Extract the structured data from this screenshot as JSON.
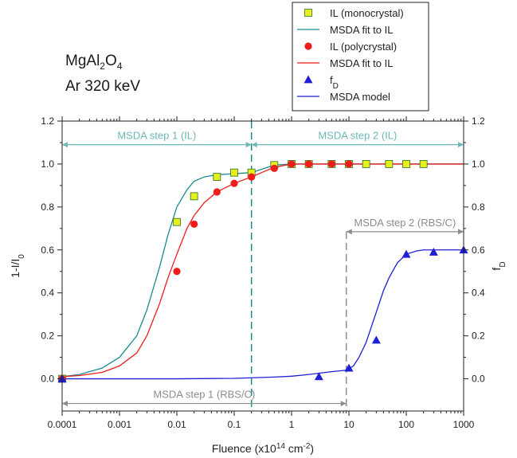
{
  "annotation": {
    "material_parts": [
      "MgAl",
      "2",
      "O",
      "4"
    ],
    "beam": "Ar 320 keV"
  },
  "colors": {
    "mono_marker": "#e6ee1e",
    "mono_fit": "#1a8c8c",
    "poly": "#ee1c1c",
    "model": "#1e1ed6",
    "ann_teal": "#6cb8b8",
    "ann_gray": "#8c8c8c"
  },
  "chart_data": {
    "type": "scatter",
    "x_scale": "log",
    "xlim": [
      0.0001,
      1000
    ],
    "ylim": [
      -0.15,
      1.2
    ],
    "y2lim": [
      -0.15,
      1.2
    ],
    "xlabel_parts": [
      "Fluence (x10",
      "14",
      " cm",
      "-2",
      ")"
    ],
    "ylabel_parts": [
      "1-I/I",
      "0"
    ],
    "y2label_parts": [
      "f",
      "D"
    ],
    "xticks": [
      0.0001,
      0.001,
      0.01,
      0.1,
      1,
      10,
      100,
      1000
    ],
    "xtick_labels": [
      "0.0001",
      "0.001",
      "0.01",
      "0.1",
      "1",
      "10",
      "100",
      "1000"
    ],
    "yticks": [
      0.0,
      0.2,
      0.4,
      0.6,
      0.8,
      1.0,
      1.2
    ],
    "ytick_labels": [
      "0.0",
      "0.2",
      "0.4",
      "0.6",
      "0.8",
      "1.0",
      "1.2"
    ],
    "legend": {
      "placement": "top-right",
      "entries": [
        {
          "label_parts": [
            "IL (monocrystal)"
          ],
          "symbol": "square"
        },
        {
          "label_parts": [
            "MSDA fit to IL"
          ],
          "symbol": "line-teal"
        },
        {
          "label_parts": [
            "IL (polycrystal)"
          ],
          "symbol": "circle"
        },
        {
          "label_parts": [
            "MSDA fit to IL"
          ],
          "symbol": "line-red"
        },
        {
          "label_parts": [
            "f",
            "D"
          ],
          "symbol": "triangle"
        },
        {
          "label_parts": [
            "MSDA model"
          ],
          "symbol": "line-blue"
        }
      ]
    },
    "series": [
      {
        "name": "IL (monocrystal)",
        "kind": "markers",
        "marker": "square",
        "x": [
          0.0001,
          0.01,
          0.02,
          0.05,
          0.1,
          0.2,
          0.5,
          1,
          2,
          5,
          10,
          20,
          50,
          100,
          200
        ],
        "y": [
          0.0,
          0.73,
          0.85,
          0.94,
          0.96,
          0.96,
          0.995,
          1.0,
          1.0,
          1.0,
          1.0,
          1.0,
          1.0,
          1.0,
          1.0
        ]
      },
      {
        "name": "MSDA fit to IL (monocrystal)",
        "kind": "line",
        "color_key": "mono_fit",
        "x": [
          0.0001,
          0.0002,
          0.0005,
          0.001,
          0.002,
          0.003,
          0.005,
          0.007,
          0.01,
          0.015,
          0.02,
          0.03,
          0.05,
          0.1,
          0.2,
          0.5,
          1,
          10,
          1000
        ],
        "y": [
          0.01,
          0.02,
          0.05,
          0.1,
          0.2,
          0.32,
          0.52,
          0.67,
          0.8,
          0.88,
          0.92,
          0.94,
          0.95,
          0.955,
          0.96,
          0.995,
          1.0,
          1.0,
          1.0
        ]
      },
      {
        "name": "IL (polycrystal)",
        "kind": "markers",
        "marker": "circle",
        "x": [
          0.0001,
          0.01,
          0.02,
          0.05,
          0.1,
          0.2,
          0.5,
          1,
          2,
          5,
          10
        ],
        "y": [
          0.0,
          0.5,
          0.72,
          0.87,
          0.91,
          0.94,
          0.98,
          1.0,
          1.0,
          1.0,
          1.0
        ]
      },
      {
        "name": "MSDA fit to IL (polycrystal)",
        "kind": "line",
        "color_key": "poly",
        "x": [
          0.0001,
          0.0002,
          0.0005,
          0.001,
          0.002,
          0.003,
          0.005,
          0.007,
          0.01,
          0.015,
          0.02,
          0.03,
          0.05,
          0.1,
          0.2,
          0.3,
          0.5,
          1,
          10,
          1000
        ],
        "y": [
          0.01,
          0.015,
          0.03,
          0.06,
          0.12,
          0.2,
          0.35,
          0.47,
          0.58,
          0.7,
          0.76,
          0.82,
          0.87,
          0.91,
          0.94,
          0.96,
          0.985,
          1.0,
          1.0,
          1.0
        ]
      },
      {
        "name": "f_D",
        "kind": "markers",
        "marker": "triangle",
        "axis": "right",
        "x": [
          0.0001,
          3,
          10,
          30,
          100,
          300,
          1000
        ],
        "y": [
          0.0,
          0.01,
          0.05,
          0.18,
          0.58,
          0.59,
          0.6
        ]
      },
      {
        "name": "MSDA model",
        "kind": "line",
        "color_key": "model",
        "axis": "right",
        "x": [
          0.0001,
          0.01,
          0.1,
          0.5,
          1,
          2,
          5,
          9,
          12,
          15,
          20,
          30,
          40,
          50,
          70,
          100,
          150,
          200,
          300,
          500,
          1000
        ],
        "y": [
          0.0,
          0.0,
          0.002,
          0.008,
          0.012,
          0.02,
          0.033,
          0.04,
          0.06,
          0.1,
          0.17,
          0.31,
          0.41,
          0.47,
          0.54,
          0.58,
          0.595,
          0.6,
          0.6,
          0.6,
          0.6
        ]
      }
    ],
    "annotations": [
      {
        "text": "MSDA step 1 (IL)",
        "x1": 0.0001,
        "x2": 0.2,
        "y": 1.09,
        "color_key": "ann_teal"
      },
      {
        "text": "MSDA step 2 (IL)",
        "x1": 0.2,
        "x2": 1000,
        "y": 1.09,
        "color_key": "ann_teal"
      },
      {
        "text": "MSDA step 2 (RBS/C)",
        "x1": 9,
        "x2": 1000,
        "y": 0.685,
        "color_key": "ann_gray"
      },
      {
        "text": "MSDA step 1 (RBS/C)",
        "x1": 0.0001,
        "x2": 9,
        "y": -0.115,
        "color_key": "ann_gray"
      }
    ],
    "vlines": [
      {
        "x": 0.2,
        "y_from": -0.15,
        "y_to": 1.2,
        "color_key": "mono_fit",
        "dashed": true
      },
      {
        "x": 9,
        "y_from": -0.15,
        "y_to": 0.685,
        "color_key": "ann_gray",
        "dashed": true
      }
    ]
  }
}
